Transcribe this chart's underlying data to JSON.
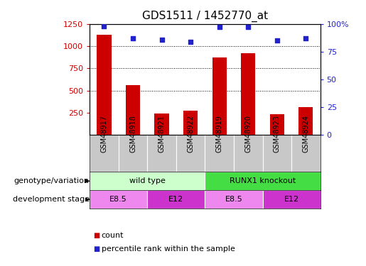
{
  "title": "GDS1511 / 1452770_at",
  "samples": [
    "GSM48917",
    "GSM48918",
    "GSM48921",
    "GSM48922",
    "GSM48919",
    "GSM48920",
    "GSM48923",
    "GSM48924"
  ],
  "counts": [
    1130,
    560,
    240,
    270,
    870,
    920,
    235,
    315
  ],
  "percentiles": [
    98,
    87,
    86,
    84,
    97,
    97,
    85,
    87
  ],
  "ylim_left": [
    0,
    1250
  ],
  "ylim_right": [
    0,
    100
  ],
  "yticks_left": [
    250,
    500,
    750,
    1000,
    1250
  ],
  "yticks_right": [
    0,
    25,
    50,
    75,
    100
  ],
  "bar_color": "#cc0000",
  "scatter_color": "#2222cc",
  "genotype_groups": [
    {
      "label": "wild type",
      "start": 0,
      "end": 4,
      "color": "#ccffcc"
    },
    {
      "label": "RUNX1 knockout",
      "start": 4,
      "end": 8,
      "color": "#44dd44"
    }
  ],
  "stage_groups": [
    {
      "label": "E8.5",
      "start": 0,
      "end": 2,
      "color": "#ee88ee"
    },
    {
      "label": "E12",
      "start": 2,
      "end": 4,
      "color": "#cc33cc"
    },
    {
      "label": "E8.5",
      "start": 4,
      "end": 6,
      "color": "#ee88ee"
    },
    {
      "label": "E12",
      "start": 6,
      "end": 8,
      "color": "#cc33cc"
    }
  ],
  "tick_color_left": "#cc0000",
  "tick_color_right": "#2222cc",
  "label_row1": "genotype/variation",
  "label_row2": "development stage",
  "sample_box_color": "#c8c8c8",
  "bar_width": 0.5
}
